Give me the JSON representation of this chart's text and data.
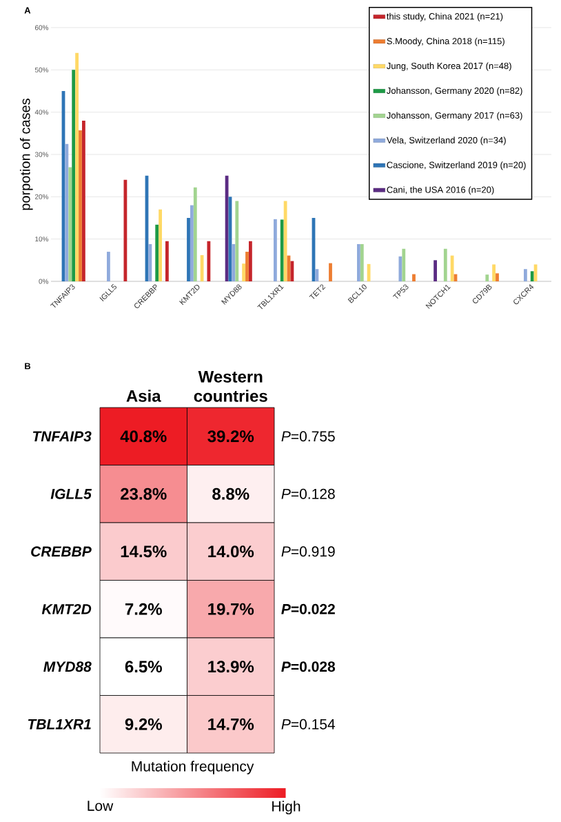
{
  "chart_data": [
    {
      "type": "bar",
      "ylabel": "porpotion of cases",
      "annotations": [
        "A"
      ],
      "categories": [
        "TNFAIP3",
        "IGLL5",
        "CREBBP",
        "KMT2D",
        "MYD88",
        "TBL1XR1",
        "TET2",
        "BCL10",
        "TP53",
        "NOTCH1",
        "CD79B",
        "CXCR4"
      ],
      "ylim": [
        0,
        60
      ],
      "yticks": [
        {
          "value": 0,
          "label": "0%"
        },
        {
          "value": 10,
          "label": "10%"
        },
        {
          "value": 20,
          "label": "20%"
        },
        {
          "value": 30,
          "label": "30%"
        },
        {
          "value": 40,
          "label": "40%"
        },
        {
          "value": 50,
          "label": "50%"
        },
        {
          "value": 60,
          "label": "60%"
        }
      ],
      "grid": "y",
      "legend": "top right",
      "series": [
        {
          "name": "Cani, the USA 2016 (n=20)",
          "color": "#5b2c83",
          "values": [
            null,
            null,
            null,
            null,
            25,
            null,
            null,
            null,
            null,
            5,
            null,
            null
          ]
        },
        {
          "name": "Cascione, Switzerland 2019 (n=20)",
          "color": "#2e75b6",
          "values": [
            45,
            null,
            25,
            15,
            20,
            null,
            15,
            null,
            null,
            null,
            null,
            null
          ]
        },
        {
          "name": "Vela, Switzerland 2020 (n=34)",
          "color": "#8faadc",
          "values": [
            32.5,
            7,
            8.8,
            18,
            8.8,
            14.7,
            2.9,
            8.8,
            5.9,
            null,
            null,
            2.9
          ]
        },
        {
          "name": "Johansson, Germany 2017 (n=63)",
          "color": "#a2d490",
          "values": [
            27,
            null,
            null,
            22.2,
            19,
            null,
            null,
            8.8,
            7.7,
            7.7,
            1.6,
            null
          ]
        },
        {
          "name": "Johansson, Germany 2020 (n=82)",
          "color": "#1e9a46",
          "values": [
            50,
            null,
            13.4,
            null,
            null,
            14.6,
            null,
            null,
            null,
            null,
            null,
            2.4
          ]
        },
        {
          "name": "Jung, South Korea 2017 (n=48)",
          "color": "#ffd966",
          "values": [
            54,
            null,
            17,
            6.2,
            4.2,
            19,
            null,
            4.1,
            null,
            6.1,
            4,
            4
          ]
        },
        {
          "name": "S.Moody, China 2018 (n=115)",
          "color": "#ed7d31",
          "values": [
            35.7,
            null,
            null,
            null,
            7,
            6.1,
            4.3,
            null,
            1.7,
            1.7,
            1.9,
            null
          ]
        },
        {
          "name": "this study, China 2021 (n=21)",
          "color": "#c5252b",
          "values": [
            38,
            24,
            9.5,
            9.5,
            9.5,
            4.8,
            null,
            null,
            null,
            null,
            null,
            null
          ]
        }
      ]
    },
    {
      "type": "heatmap",
      "annotations": [
        "B"
      ],
      "clabel": "Mutation frequency",
      "color": "#ed1c24",
      "clim": [
        6.5,
        40.8
      ],
      "cticks": [
        {
          "value": 6.5,
          "label": "Low"
        },
        {
          "value": 40.8,
          "label": "High"
        }
      ],
      "categories": [
        "Asia",
        "Western countries"
      ],
      "y_categories": [
        "TNFAIP3",
        "IGLL5",
        "CREBBP",
        "KMT2D",
        "MYD88",
        "TBL1XR1"
      ],
      "y2_categories": [
        "*P*=0.755",
        "*P*=0.128",
        "*P*=0.919",
        "***P*=0.022**",
        "***P*=0.028**",
        "*P*=0.154"
      ],
      "cells": [
        [
          40.8,
          39.2
        ],
        [
          23.8,
          8.8
        ],
        [
          14.5,
          14.0
        ],
        [
          7.2,
          19.7
        ],
        [
          6.5,
          13.9
        ],
        [
          9.2,
          14.7
        ]
      ],
      "cell_labels": [
        [
          "40.8%",
          "39.2%"
        ],
        [
          "23.8%",
          "8.8%"
        ],
        [
          "14.5%",
          "14.0%"
        ],
        [
          "7.2%",
          "19.7%"
        ],
        [
          "6.5%",
          "13.9%"
        ],
        [
          "9.2%",
          "14.7%"
        ]
      ]
    }
  ]
}
